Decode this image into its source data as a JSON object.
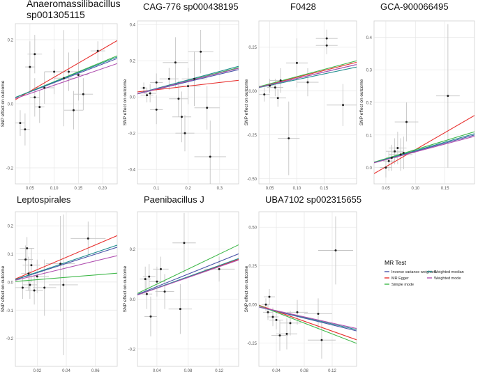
{
  "figure": {
    "ylabel": "SNP effect on outcome",
    "legend": {
      "title": "MR Test",
      "entries": [
        {
          "name": "Inverse variance weighted",
          "color": "#4a54a8"
        },
        {
          "name": "MR Egger",
          "color": "#e8312f"
        },
        {
          "name": "Simple mode",
          "color": "#3fb84a"
        },
        {
          "name": "Weighted median",
          "color": "#1f8c8e"
        },
        {
          "name": "Weighted mode",
          "color": "#b04fb0"
        }
      ]
    }
  },
  "chart_data": [
    {
      "type": "scatter",
      "title": "Anaeromassilibacillus sp001305115",
      "xlim": [
        0.02,
        0.23
      ],
      "ylim": [
        -0.25,
        0.25
      ],
      "xticks": [
        0.05,
        0.1,
        0.15,
        0.2
      ],
      "xtick_labels": [
        "0.05",
        "0.10",
        "0.15",
        "0.20"
      ],
      "yticks": [
        -0.2,
        0.0,
        0.2
      ],
      "ytick_labels": [
        "-0.2",
        "0.0",
        "0.2"
      ],
      "points": [
        {
          "x": 0.03,
          "y": -0.06,
          "xerr": 0.01,
          "yerr": 0.04
        },
        {
          "x": 0.04,
          "y": -0.08,
          "xerr": 0.01,
          "yerr": 0.05
        },
        {
          "x": 0.05,
          "y": 0.115,
          "xerr": 0.01,
          "yerr": 0.08
        },
        {
          "x": 0.06,
          "y": 0.155,
          "xerr": 0.015,
          "yerr": 0.06
        },
        {
          "x": 0.06,
          "y": 0.02,
          "xerr": 0.01,
          "yerr": 0.06
        },
        {
          "x": 0.07,
          "y": -0.01,
          "xerr": 0.01,
          "yerr": 0.05
        },
        {
          "x": 0.08,
          "y": 0.05,
          "xerr": 0.02,
          "yerr": 0.05
        },
        {
          "x": 0.1,
          "y": 0.1,
          "xerr": 0.02,
          "yerr": 0.07
        },
        {
          "x": 0.12,
          "y": 0.08,
          "xerr": 0.02,
          "yerr": 0.15
        },
        {
          "x": 0.13,
          "y": 0.1,
          "xerr": 0.02,
          "yerr": 0.06
        },
        {
          "x": 0.14,
          "y": -0.02,
          "xerr": 0.02,
          "yerr": 0.06
        },
        {
          "x": 0.15,
          "y": 0.09,
          "xerr": 0.02,
          "yerr": 0.08
        },
        {
          "x": 0.16,
          "y": 0.03,
          "xerr": 0.02,
          "yerr": 0.05
        },
        {
          "x": 0.19,
          "y": 0.165,
          "xerr": 0.015,
          "yerr": 0.03
        }
      ],
      "lines": [
        {
          "method": "Inverse variance weighted",
          "y0": 0.008,
          "slope": 0.58
        },
        {
          "method": "MR Egger",
          "y0": -0.005,
          "slope": 0.88
        },
        {
          "method": "Simple mode",
          "y0": 0.007,
          "slope": 0.62
        },
        {
          "method": "Weighted median",
          "y0": 0.008,
          "slope": 0.6
        },
        {
          "method": "Weighted mode",
          "y0": 0.006,
          "slope": 0.52
        }
      ]
    },
    {
      "type": "scatter",
      "title": "CAG-776 sp000438195",
      "xlim": [
        0.04,
        0.36
      ],
      "ylim": [
        -0.48,
        0.42
      ],
      "xticks": [
        0.1,
        0.2,
        0.3
      ],
      "xtick_labels": [
        "0.1",
        "0.2",
        "0.3"
      ],
      "yticks": [
        -0.4,
        -0.2,
        0.0,
        0.2,
        0.4
      ],
      "ytick_labels": [
        "-0.4",
        "-0.2",
        "0.0",
        "0.2",
        "0.4"
      ],
      "points": [
        {
          "x": 0.06,
          "y": 0.05,
          "xerr": 0.01,
          "yerr": 0.03
        },
        {
          "x": 0.07,
          "y": 0.01,
          "xerr": 0.02,
          "yerr": 0.04
        },
        {
          "x": 0.08,
          "y": 0.02,
          "xerr": 0.02,
          "yerr": 0.05
        },
        {
          "x": 0.1,
          "y": 0.08,
          "xerr": 0.02,
          "yerr": 0.05
        },
        {
          "x": 0.1,
          "y": -0.07,
          "xerr": 0.02,
          "yerr": 0.08
        },
        {
          "x": 0.14,
          "y": 0.1,
          "xerr": 0.03,
          "yerr": 0.06
        },
        {
          "x": 0.16,
          "y": 0.19,
          "xerr": 0.04,
          "yerr": 0.14
        },
        {
          "x": 0.17,
          "y": -0.01,
          "xerr": 0.03,
          "yerr": 0.1
        },
        {
          "x": 0.18,
          "y": -0.11,
          "xerr": 0.03,
          "yerr": 0.14
        },
        {
          "x": 0.19,
          "y": -0.2,
          "xerr": 0.03,
          "yerr": 0.1
        },
        {
          "x": 0.2,
          "y": 0.06,
          "xerr": 0.04,
          "yerr": 0.1
        },
        {
          "x": 0.22,
          "y": 0.1,
          "xerr": 0.04,
          "yerr": 0.15
        },
        {
          "x": 0.24,
          "y": 0.25,
          "xerr": 0.04,
          "yerr": 0.12
        },
        {
          "x": 0.26,
          "y": -0.06,
          "xerr": 0.04,
          "yerr": 0.12
        },
        {
          "x": 0.27,
          "y": -0.33,
          "xerr": 0.05,
          "yerr": 0.2
        }
      ],
      "lines": [
        {
          "method": "Inverse variance weighted",
          "y0": 0.0,
          "slope": 0.42
        },
        {
          "method": "MR Egger",
          "y0": 0.02,
          "slope": 0.2
        },
        {
          "method": "Simple mode",
          "y0": 0.0,
          "slope": 0.45
        },
        {
          "method": "Weighted median",
          "y0": 0.0,
          "slope": 0.47
        },
        {
          "method": "Weighted mode",
          "y0": 0.0,
          "slope": 0.44
        }
      ]
    },
    {
      "type": "scatter",
      "title": "F0428",
      "xlim": [
        0.03,
        0.21
      ],
      "ylim": [
        -0.53,
        0.4
      ],
      "xticks": [
        0.05,
        0.1,
        0.15
      ],
      "xtick_labels": [
        "0.05",
        "0.10",
        "0.15"
      ],
      "yticks": [
        -0.5,
        -0.25,
        0.0,
        0.25
      ],
      "ytick_labels": [
        "-0.50",
        "-0.25",
        "0.00",
        "0.25"
      ],
      "points": [
        {
          "x": 0.04,
          "y": -0.02,
          "xerr": 0.01,
          "yerr": 0.04
        },
        {
          "x": 0.05,
          "y": 0.03,
          "xerr": 0.01,
          "yerr": 0.04
        },
        {
          "x": 0.06,
          "y": 0.02,
          "xerr": 0.015,
          "yerr": 0.05
        },
        {
          "x": 0.065,
          "y": -0.04,
          "xerr": 0.015,
          "yerr": 0.05
        },
        {
          "x": 0.07,
          "y": 0.06,
          "xerr": 0.02,
          "yerr": 0.07
        },
        {
          "x": 0.085,
          "y": -0.27,
          "xerr": 0.02,
          "yerr": 0.21
        },
        {
          "x": 0.1,
          "y": 0.16,
          "xerr": 0.02,
          "yerr": 0.14
        },
        {
          "x": 0.12,
          "y": 0.05,
          "xerr": 0.02,
          "yerr": 0.08
        },
        {
          "x": 0.155,
          "y": 0.3,
          "xerr": 0.02,
          "yerr": 0.05
        },
        {
          "x": 0.155,
          "y": 0.26,
          "xerr": 0.02,
          "yerr": 0.05
        },
        {
          "x": 0.185,
          "y": -0.08,
          "xerr": 0.03,
          "yerr": 0.12
        }
      ],
      "lines": [
        {
          "method": "Inverse variance weighted",
          "y0": 0.0,
          "slope": 0.72
        },
        {
          "method": "MR Egger",
          "y0": 0.0,
          "slope": 0.78
        },
        {
          "method": "Simple mode",
          "y0": 0.0,
          "slope": 0.82
        },
        {
          "method": "Weighted median",
          "y0": 0.0,
          "slope": 0.65
        },
        {
          "method": "Weighted mode",
          "y0": 0.0,
          "slope": 0.72
        }
      ]
    },
    {
      "type": "scatter",
      "title": "GCA-900066495",
      "xlim": [
        0.03,
        0.2
      ],
      "ylim": [
        -0.05,
        0.45
      ],
      "xticks": [
        0.05,
        0.1,
        0.15
      ],
      "xtick_labels": [
        "0.05",
        "0.10",
        "0.15"
      ],
      "yticks": [
        0.0,
        0.1,
        0.2,
        0.3,
        0.4
      ],
      "ytick_labels": [
        "0.0",
        "0.1",
        "0.2",
        "0.3",
        "0.4"
      ],
      "points": [
        {
          "x": 0.05,
          "y": 0.0,
          "xerr": 0.01,
          "yerr": 0.03
        },
        {
          "x": 0.055,
          "y": 0.02,
          "xerr": 0.01,
          "yerr": 0.03
        },
        {
          "x": 0.06,
          "y": 0.03,
          "xerr": 0.01,
          "yerr": 0.04
        },
        {
          "x": 0.065,
          "y": 0.05,
          "xerr": 0.015,
          "yerr": 0.04
        },
        {
          "x": 0.07,
          "y": 0.06,
          "xerr": 0.015,
          "yerr": 0.05
        },
        {
          "x": 0.075,
          "y": 0.04,
          "xerr": 0.02,
          "yerr": 0.05
        },
        {
          "x": 0.08,
          "y": 0.045,
          "xerr": 0.02,
          "yerr": 0.05
        },
        {
          "x": 0.085,
          "y": 0.14,
          "xerr": 0.02,
          "yerr": 0.06
        },
        {
          "x": 0.155,
          "y": 0.22,
          "xerr": 0.02,
          "yerr": 0.22
        }
      ],
      "lines": [
        {
          "method": "Inverse variance weighted",
          "y0": 0.0,
          "slope": 0.5
        },
        {
          "method": "MR Egger",
          "y0": -0.05,
          "slope": 1.05
        },
        {
          "method": "Simple mode",
          "y0": 0.0,
          "slope": 0.55
        },
        {
          "method": "Weighted median",
          "y0": 0.0,
          "slope": 0.52
        },
        {
          "method": "Weighted mode",
          "y0": 0.0,
          "slope": 0.48
        }
      ]
    },
    {
      "type": "scatter",
      "title": "Leptospirales",
      "xlim": [
        0.005,
        0.075
      ],
      "ylim": [
        -0.3,
        0.25
      ],
      "xticks": [
        0.02,
        0.04,
        0.06
      ],
      "xtick_labels": [
        "0.02",
        "0.04",
        "0.06"
      ],
      "yticks": [
        -0.2,
        -0.1,
        0.0,
        0.1,
        0.2
      ],
      "ytick_labels": [
        "-0.2",
        "-0.1",
        "0.0",
        "0.1",
        "0.2"
      ],
      "points": [
        {
          "x": 0.01,
          "y": -0.02,
          "xerr": 0.005,
          "yerr": 0.04
        },
        {
          "x": 0.012,
          "y": 0.08,
          "xerr": 0.005,
          "yerr": 0.05
        },
        {
          "x": 0.013,
          "y": 0.12,
          "xerr": 0.005,
          "yerr": 0.04
        },
        {
          "x": 0.014,
          "y": 0.03,
          "xerr": 0.005,
          "yerr": 0.06
        },
        {
          "x": 0.015,
          "y": -0.01,
          "xerr": 0.005,
          "yerr": 0.05
        },
        {
          "x": 0.016,
          "y": 0.06,
          "xerr": 0.006,
          "yerr": 0.06
        },
        {
          "x": 0.018,
          "y": -0.03,
          "xerr": 0.006,
          "yerr": 0.05
        },
        {
          "x": 0.02,
          "y": 0.02,
          "xerr": 0.008,
          "yerr": 0.06
        },
        {
          "x": 0.025,
          "y": -0.02,
          "xerr": 0.008,
          "yerr": 0.1
        },
        {
          "x": 0.036,
          "y": 0.065,
          "xerr": 0.01,
          "yerr": 0.17
        },
        {
          "x": 0.038,
          "y": -0.01,
          "xerr": 0.01,
          "yerr": 0.25
        },
        {
          "x": 0.055,
          "y": 0.155,
          "xerr": 0.012,
          "yerr": 0.06
        }
      ],
      "lines": [
        {
          "method": "Inverse variance weighted",
          "y0": 0.0,
          "slope": 1.65
        },
        {
          "method": "MR Egger",
          "y0": 0.0,
          "slope": 2.2
        },
        {
          "method": "Simple mode",
          "y0": 0.0,
          "slope": 0.42
        },
        {
          "method": "Weighted median",
          "y0": 0.0,
          "slope": 1.75
        },
        {
          "method": "Weighted mode",
          "y0": 0.0,
          "slope": 1.25
        }
      ]
    },
    {
      "type": "scatter",
      "title": "Paenibacillus J",
      "xlim": [
        0.015,
        0.145
      ],
      "ylim": [
        -0.27,
        0.35
      ],
      "xticks": [
        0.04,
        0.08,
        0.12
      ],
      "xtick_labels": [
        "0.04",
        "0.08",
        "0.12"
      ],
      "yticks": [
        -0.2,
        0.0,
        0.2
      ],
      "ytick_labels": [
        "-0.2",
        "0.0",
        "0.2"
      ],
      "points": [
        {
          "x": 0.025,
          "y": 0.08,
          "xerr": 0.007,
          "yerr": 0.05
        },
        {
          "x": 0.027,
          "y": 0.02,
          "xerr": 0.007,
          "yerr": 0.06
        },
        {
          "x": 0.03,
          "y": 0.09,
          "xerr": 0.008,
          "yerr": 0.05
        },
        {
          "x": 0.032,
          "y": -0.07,
          "xerr": 0.008,
          "yerr": 0.08
        },
        {
          "x": 0.04,
          "y": 0.07,
          "xerr": 0.01,
          "yerr": 0.06
        },
        {
          "x": 0.045,
          "y": 0.12,
          "xerr": 0.01,
          "yerr": 0.05
        },
        {
          "x": 0.05,
          "y": 0.03,
          "xerr": 0.012,
          "yerr": 0.07
        },
        {
          "x": 0.07,
          "y": -0.04,
          "xerr": 0.015,
          "yerr": 0.1
        },
        {
          "x": 0.075,
          "y": 0.225,
          "xerr": 0.015,
          "yerr": 0.12
        },
        {
          "x": 0.12,
          "y": 0.12,
          "xerr": 0.02,
          "yerr": 0.05
        }
      ],
      "lines": [
        {
          "method": "Inverse variance weighted",
          "y0": 0.0,
          "slope": 1.25
        },
        {
          "method": "MR Egger",
          "y0": 0.0,
          "slope": 1.1
        },
        {
          "method": "Simple mode",
          "y0": 0.0,
          "slope": 1.5
        },
        {
          "method": "Weighted median",
          "y0": 0.0,
          "slope": 1.12
        },
        {
          "method": "Weighted mode",
          "y0": 0.0,
          "slope": 1.08
        }
      ]
    },
    {
      "type": "scatter",
      "title": "UBA7102 sp002315655",
      "xlim": [
        0.015,
        0.155
      ],
      "ylim": [
        -0.4,
        0.6
      ],
      "xticks": [
        0.04,
        0.08,
        0.12
      ],
      "xtick_labels": [
        "0.04",
        "0.08",
        "0.12"
      ],
      "yticks": [
        -0.25,
        0.0,
        0.25,
        0.5
      ],
      "ytick_labels": [
        "-0.25",
        "0.00",
        "0.25",
        "0.50"
      ],
      "points": [
        {
          "x": 0.025,
          "y": 0.0,
          "xerr": 0.006,
          "yerr": 0.04
        },
        {
          "x": 0.028,
          "y": -0.05,
          "xerr": 0.007,
          "yerr": 0.05
        },
        {
          "x": 0.03,
          "y": 0.05,
          "xerr": 0.008,
          "yerr": 0.05
        },
        {
          "x": 0.035,
          "y": -0.08,
          "xerr": 0.008,
          "yerr": 0.06
        },
        {
          "x": 0.04,
          "y": -0.1,
          "xerr": 0.01,
          "yerr": 0.06
        },
        {
          "x": 0.045,
          "y": -0.2,
          "xerr": 0.012,
          "yerr": 0.1
        },
        {
          "x": 0.055,
          "y": -0.19,
          "xerr": 0.015,
          "yerr": 0.1
        },
        {
          "x": 0.06,
          "y": -0.12,
          "xerr": 0.015,
          "yerr": 0.08
        },
        {
          "x": 0.07,
          "y": -0.05,
          "xerr": 0.015,
          "yerr": 0.08
        },
        {
          "x": 0.1,
          "y": -0.06,
          "xerr": 0.02,
          "yerr": 0.1
        },
        {
          "x": 0.105,
          "y": -0.23,
          "xerr": 0.02,
          "yerr": 0.12
        },
        {
          "x": 0.125,
          "y": 0.35,
          "xerr": 0.025,
          "yerr": 0.22
        }
      ],
      "lines": [
        {
          "method": "Inverse variance weighted",
          "y0": 0.0,
          "slope": -1.1
        },
        {
          "method": "MR Egger",
          "y0": 0.02,
          "slope": -1.6
        },
        {
          "method": "Simple mode",
          "y0": 0.02,
          "slope": -1.75
        },
        {
          "method": "Weighted median",
          "y0": 0.0,
          "slope": -1.05
        },
        {
          "method": "Weighted mode",
          "y0": 0.0,
          "slope": -1.0
        }
      ]
    }
  ]
}
